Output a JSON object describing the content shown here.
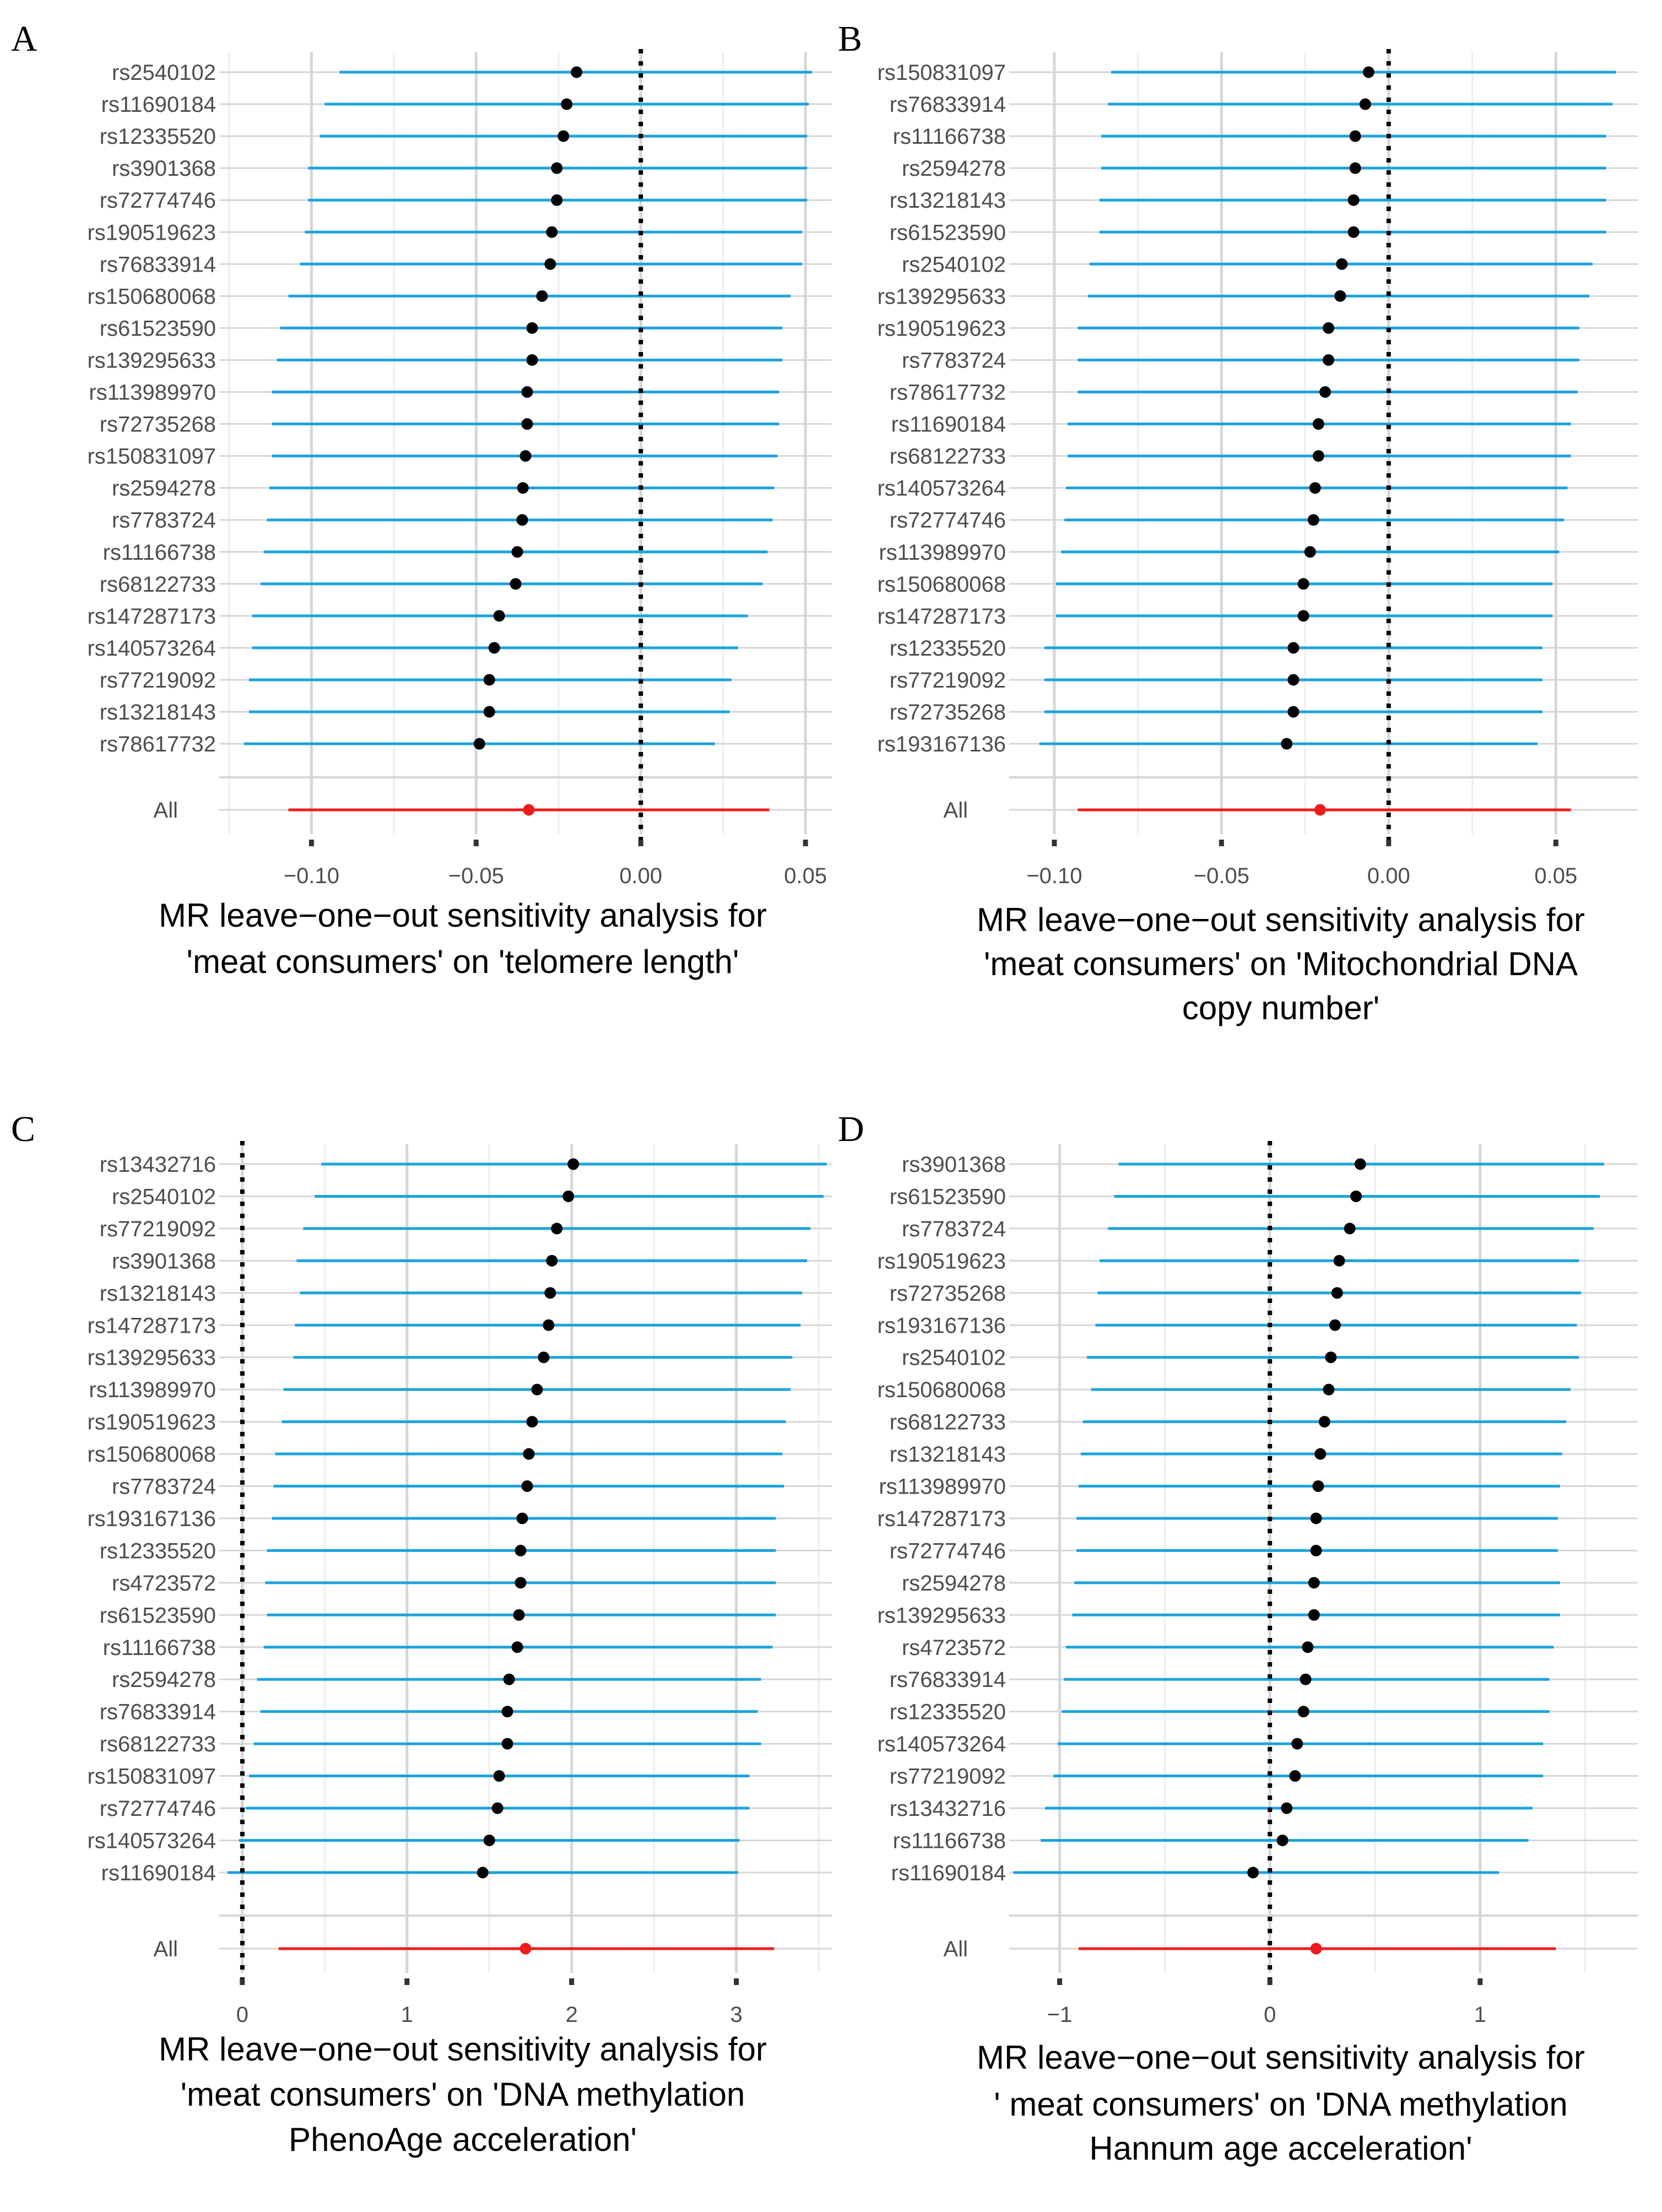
{
  "chart_data": [
    {
      "type": "forest",
      "panel": "A",
      "title_lines": [
        "MR leave−one−out sensitivity analysis for",
        "'meat consumers' on 'telomere length'"
      ],
      "xlim": [
        -0.128,
        0.058
      ],
      "xticks": [
        -0.1,
        -0.05,
        0.0,
        0.05
      ],
      "xtick_labels": [
        "−0.10",
        "−0.05",
        "0.00",
        "0.05"
      ],
      "reference_line": 0,
      "snps": [
        "rs2540102",
        "rs11690184",
        "rs12335520",
        "rs3901368",
        "rs72774746",
        "rs190519623",
        "rs76833914",
        "rs150680068",
        "rs61523590",
        "rs139295633",
        "rs113989970",
        "rs72735268",
        "rs150831097",
        "rs2594278",
        "rs7783724",
        "rs11166738",
        "rs68122733",
        "rs147287173",
        "rs140573264",
        "rs77219092",
        "rs13218143",
        "rs78617732"
      ],
      "estimates": [
        -0.0195,
        -0.0225,
        -0.0235,
        -0.0255,
        -0.0255,
        -0.027,
        -0.0275,
        -0.03,
        -0.033,
        -0.033,
        -0.0345,
        -0.0345,
        -0.035,
        -0.0358,
        -0.036,
        -0.0375,
        -0.038,
        -0.043,
        -0.0445,
        -0.046,
        -0.046,
        -0.049
      ],
      "lower": [
        -0.0915,
        -0.096,
        -0.0975,
        -0.101,
        -0.101,
        -0.102,
        -0.1035,
        -0.107,
        -0.1095,
        -0.1105,
        -0.112,
        -0.112,
        -0.112,
        -0.1128,
        -0.1135,
        -0.1145,
        -0.1155,
        -0.118,
        -0.118,
        -0.119,
        -0.119,
        -0.1205
      ],
      "upper": [
        0.052,
        0.051,
        0.0505,
        0.0505,
        0.0505,
        0.049,
        0.049,
        0.0455,
        0.043,
        0.043,
        0.042,
        0.042,
        0.0415,
        0.0405,
        0.04,
        0.0385,
        0.037,
        0.0325,
        0.0295,
        0.0275,
        0.027,
        0.0225
      ],
      "overall": {
        "label": "All",
        "estimate": -0.034,
        "lower": -0.107,
        "upper": 0.039
      }
    },
    {
      "type": "forest",
      "panel": "B",
      "title_lines": [
        "MR leave−one−out sensitivity analysis for",
        "'meat consumers' on 'Mitochondrial DNA",
        "copy number'"
      ],
      "xlim": [
        -0.1135,
        0.0745
      ],
      "xticks": [
        -0.1,
        -0.05,
        0.0,
        0.05
      ],
      "xtick_labels": [
        "−0.10",
        "−0.05",
        "0.00",
        "0.05"
      ],
      "reference_line": 0,
      "snps": [
        "rs150831097",
        "rs76833914",
        "rs11166738",
        "rs2594278",
        "rs13218143",
        "rs61523590",
        "rs2540102",
        "rs139295633",
        "rs190519623",
        "rs7783724",
        "rs78617732",
        "rs11690184",
        "rs68122733",
        "rs140573264",
        "rs72774746",
        "rs113989970",
        "rs150680068",
        "rs147287173",
        "rs12335520",
        "rs77219092",
        "rs72735268",
        "rs193167136"
      ],
      "estimates": [
        -0.006,
        -0.007,
        -0.01,
        -0.01,
        -0.0105,
        -0.0105,
        -0.014,
        -0.0145,
        -0.018,
        -0.018,
        -0.019,
        -0.021,
        -0.021,
        -0.022,
        -0.0225,
        -0.0235,
        -0.0255,
        -0.0255,
        -0.0285,
        -0.0285,
        -0.0285,
        -0.0305
      ],
      "lower": [
        -0.083,
        -0.084,
        -0.086,
        -0.086,
        -0.0865,
        -0.0865,
        -0.0895,
        -0.09,
        -0.093,
        -0.093,
        -0.093,
        -0.096,
        -0.096,
        -0.0965,
        -0.097,
        -0.098,
        -0.0995,
        -0.0995,
        -0.103,
        -0.103,
        -0.103,
        -0.1045
      ],
      "upper": [
        0.068,
        0.067,
        0.065,
        0.065,
        0.065,
        0.065,
        0.061,
        0.06,
        0.057,
        0.057,
        0.0565,
        0.0545,
        0.0545,
        0.0535,
        0.0525,
        0.051,
        0.049,
        0.049,
        0.046,
        0.046,
        0.046,
        0.0445
      ],
      "overall": {
        "label": "All",
        "estimate": -0.0205,
        "lower": -0.093,
        "upper": 0.0545
      }
    },
    {
      "type": "forest",
      "panel": "C",
      "title_lines": [
        "MR leave−one−out sensitivity analysis for",
        "'meat consumers' on 'DNA methylation",
        "PhenoAge acceleration'"
      ],
      "xlim": [
        -0.14,
        3.58
      ],
      "xticks": [
        0,
        1,
        2,
        3
      ],
      "xtick_labels": [
        "0",
        "1",
        "2",
        "3"
      ],
      "reference_line": 0,
      "snps": [
        "rs13432716",
        "rs2540102",
        "rs77219092",
        "rs3901368",
        "rs13218143",
        "rs147287173",
        "rs139295633",
        "rs113989970",
        "rs190519623",
        "rs150680068",
        "rs7783724",
        "rs193167136",
        "rs12335520",
        "rs4723572",
        "rs61523590",
        "rs11166738",
        "rs2594278",
        "rs76833914",
        "rs68122733",
        "rs150831097",
        "rs72774746",
        "rs140573264",
        "rs11690184"
      ],
      "estimates": [
        2.01,
        1.98,
        1.91,
        1.88,
        1.87,
        1.86,
        1.83,
        1.79,
        1.76,
        1.74,
        1.73,
        1.7,
        1.69,
        1.69,
        1.68,
        1.67,
        1.62,
        1.61,
        1.61,
        1.56,
        1.55,
        1.5,
        1.46
      ],
      "lower": [
        0.48,
        0.44,
        0.37,
        0.33,
        0.35,
        0.32,
        0.31,
        0.25,
        0.24,
        0.2,
        0.19,
        0.18,
        0.15,
        0.14,
        0.15,
        0.13,
        0.09,
        0.11,
        0.07,
        0.04,
        0.02,
        -0.02,
        -0.09
      ],
      "upper": [
        3.55,
        3.53,
        3.45,
        3.43,
        3.4,
        3.39,
        3.34,
        3.33,
        3.3,
        3.28,
        3.29,
        3.24,
        3.24,
        3.24,
        3.24,
        3.22,
        3.15,
        3.13,
        3.15,
        3.08,
        3.08,
        3.02,
        3.01
      ],
      "overall": {
        "label": "All",
        "estimate": 1.72,
        "lower": 0.22,
        "upper": 3.23
      }
    },
    {
      "type": "forest",
      "panel": "D",
      "title_lines": [
        "MR leave−one−out sensitivity analysis for",
        "' meat consumers' on 'DNA methylation",
        "Hannum age acceleration'"
      ],
      "xlim": [
        -1.24,
        1.75
      ],
      "xticks": [
        -1,
        0,
        1
      ],
      "xtick_labels": [
        "−1",
        "0",
        "1"
      ],
      "reference_line": 0,
      "snps": [
        "rs3901368",
        "rs61523590",
        "rs7783724",
        "rs190519623",
        "rs72735268",
        "rs193167136",
        "rs2540102",
        "rs150680068",
        "rs68122733",
        "rs13218143",
        "rs113989970",
        "rs147287173",
        "rs72774746",
        "rs2594278",
        "rs139295633",
        "rs4723572",
        "rs76833914",
        "rs12335520",
        "rs140573264",
        "rs77219092",
        "rs13432716",
        "rs11166738",
        "rs11690184"
      ],
      "estimates": [
        0.43,
        0.41,
        0.38,
        0.33,
        0.32,
        0.31,
        0.29,
        0.28,
        0.26,
        0.24,
        0.23,
        0.22,
        0.22,
        0.21,
        0.21,
        0.18,
        0.17,
        0.16,
        0.13,
        0.12,
        0.08,
        0.06,
        -0.08
      ],
      "lower": [
        -0.72,
        -0.74,
        -0.77,
        -0.81,
        -0.82,
        -0.83,
        -0.87,
        -0.85,
        -0.89,
        -0.9,
        -0.91,
        -0.92,
        -0.92,
        -0.93,
        -0.94,
        -0.97,
        -0.98,
        -0.99,
        -1.01,
        -1.03,
        -1.07,
        -1.09,
        -1.22
      ],
      "upper": [
        1.59,
        1.57,
        1.54,
        1.47,
        1.48,
        1.46,
        1.47,
        1.43,
        1.41,
        1.39,
        1.38,
        1.37,
        1.37,
        1.38,
        1.38,
        1.35,
        1.33,
        1.33,
        1.3,
        1.3,
        1.25,
        1.23,
        1.09
      ],
      "overall": {
        "label": "All",
        "estimate": 0.22,
        "lower": -0.91,
        "upper": 1.36
      }
    }
  ],
  "colors": {
    "ci_line": "#1ba3dc",
    "overall_line": "#ee1c1c",
    "point": "#000000",
    "grid_major": "#d6d6d6",
    "grid_minor": "#ececec",
    "text": "#4d4d4d"
  }
}
